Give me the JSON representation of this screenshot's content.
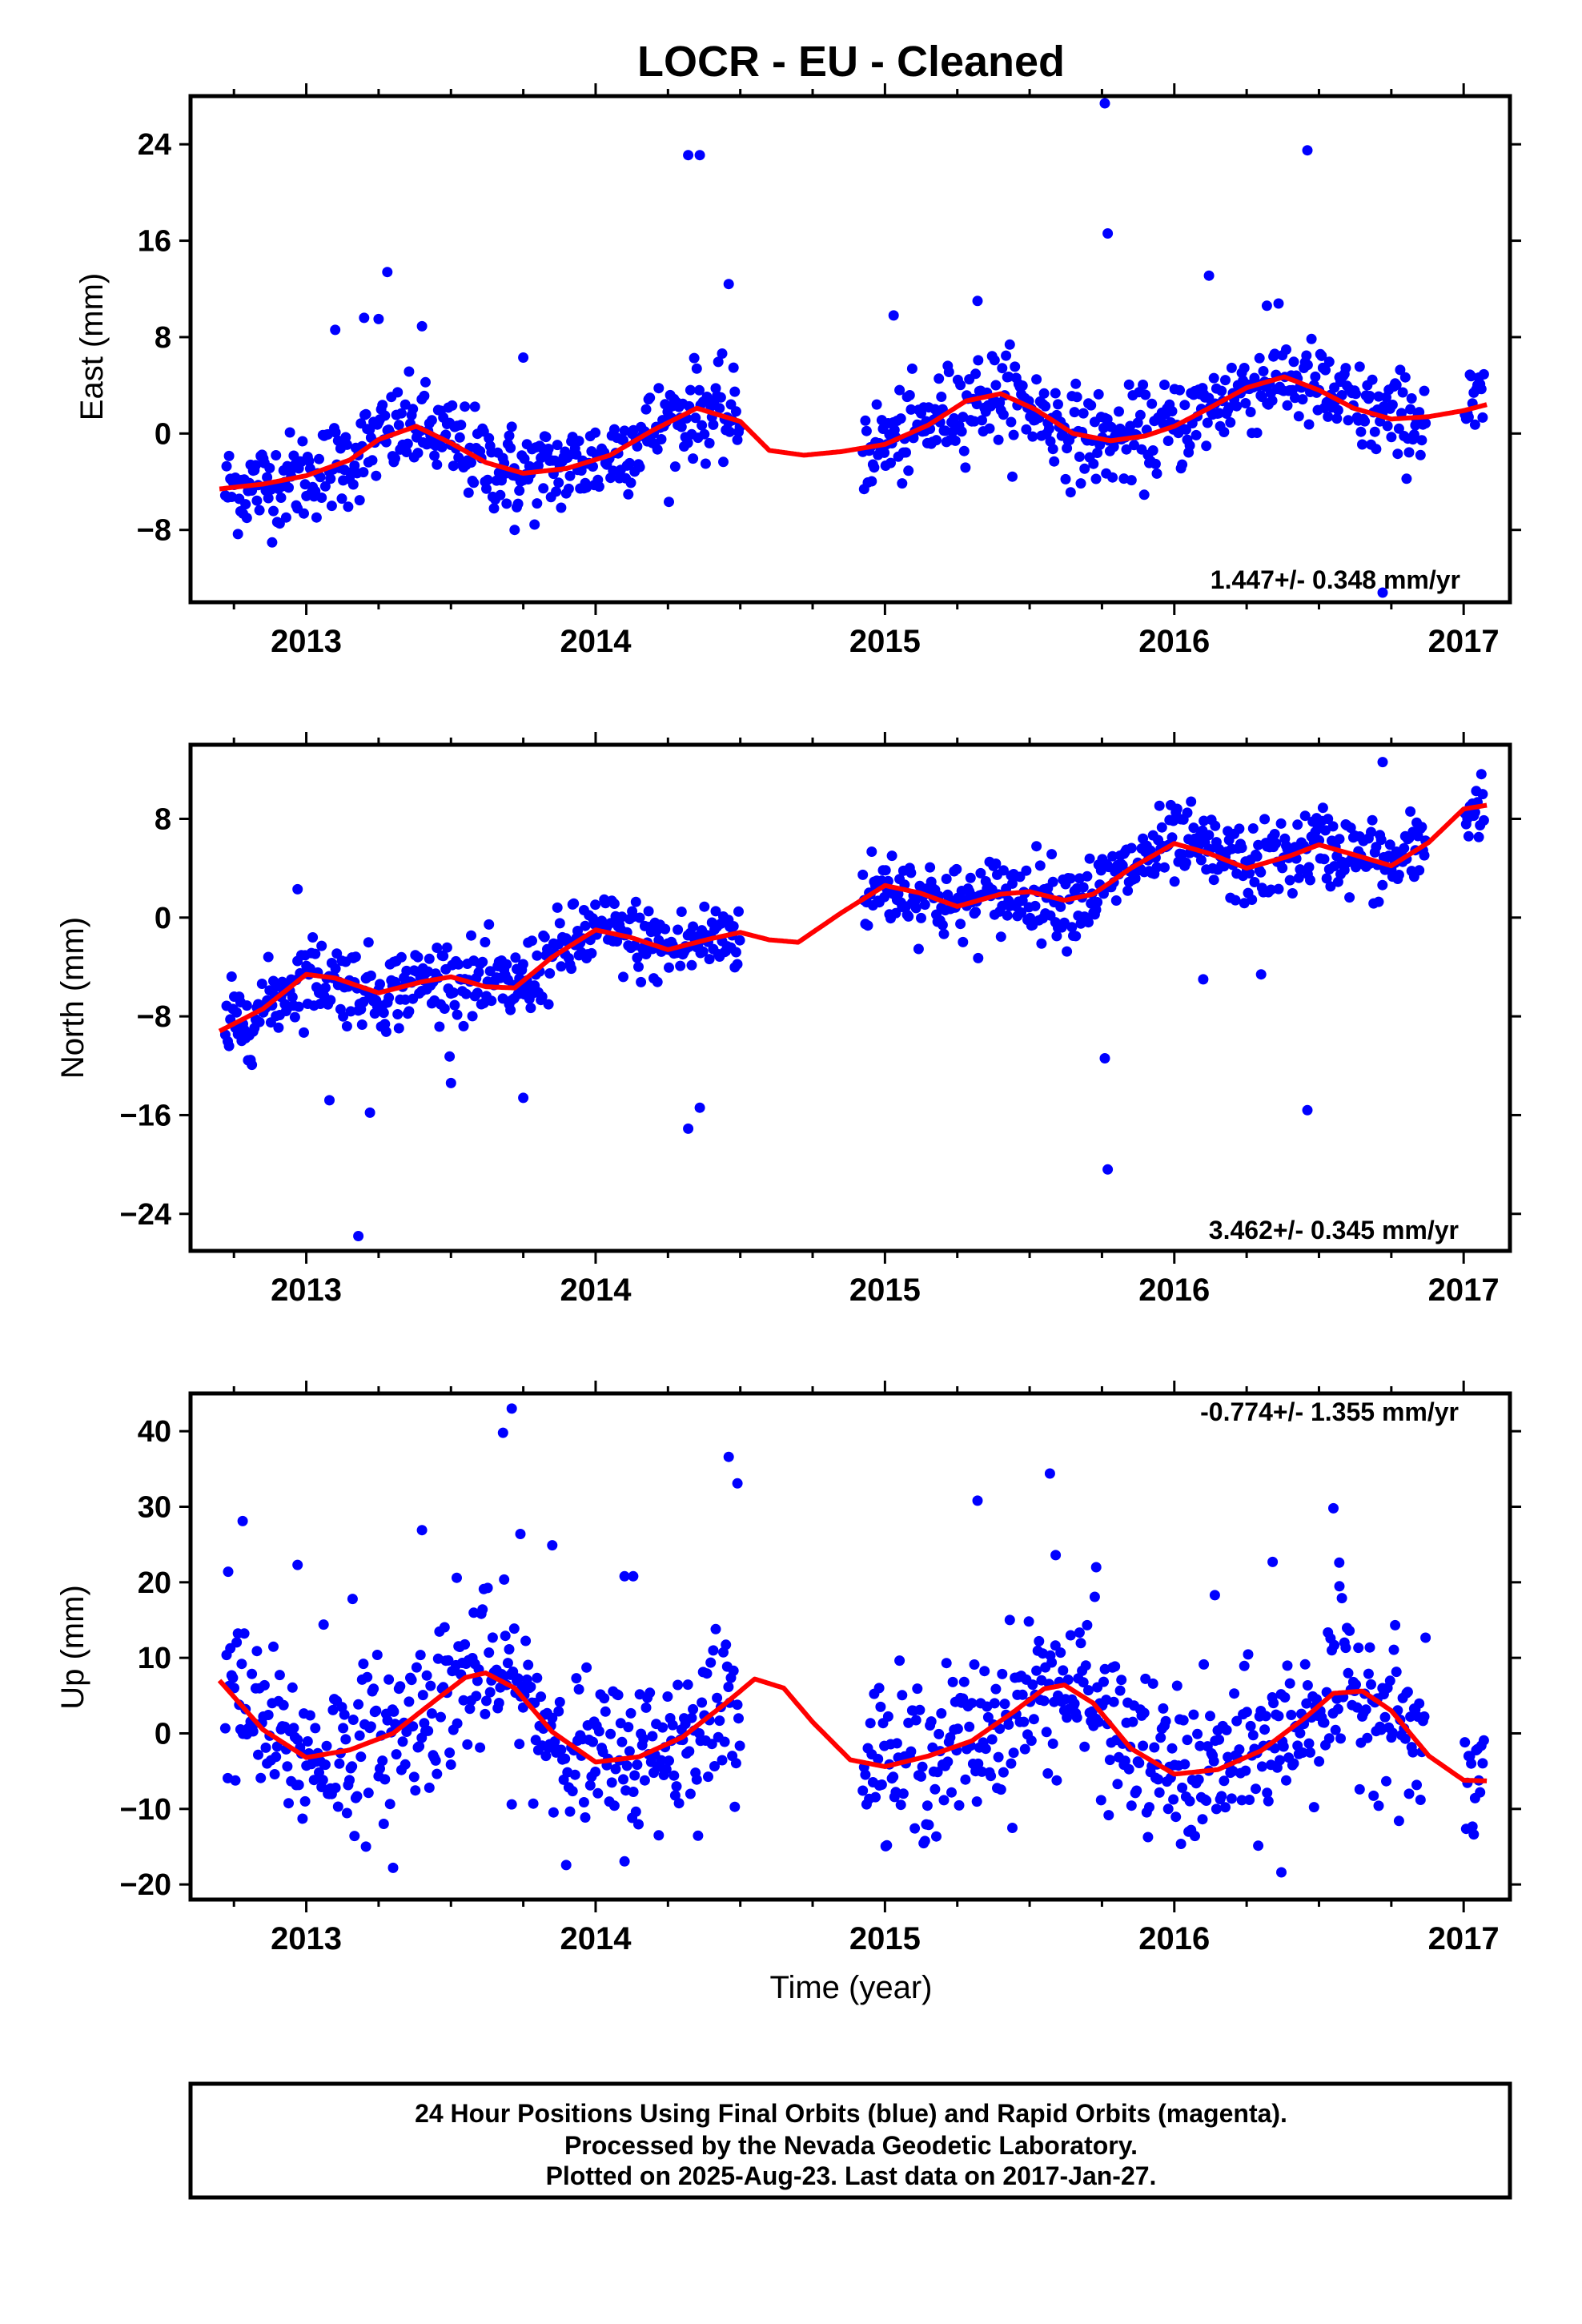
{
  "title": "LOCR  - EU - Cleaned",
  "xlabel": "Time (year)",
  "footer": {
    "lines": [
      "24 Hour Positions Using Final Orbits (blue) and Rapid Orbits (magenta).",
      "Processed by the Nevada Geodetic Laboratory.",
      "Plotted on 2025-Aug-23. Last data on 2017-Jan-27."
    ]
  },
  "colors": {
    "points": "#0000ff",
    "fit": "#ff0000",
    "frame": "#000000"
  },
  "chart_data": [
    {
      "type": "scatter",
      "component": "east",
      "ylabel": "East (mm)",
      "rate_text": "1.447+/- 0.348 mm/yr",
      "rate_position": "bottom-right",
      "xlim": [
        2012.6,
        2017.16
      ],
      "ylim": [
        -14,
        28
      ],
      "xticks": [
        2013,
        2014,
        2015,
        2016,
        2017
      ],
      "yticks": [
        -8,
        0,
        8,
        16,
        24
      ],
      "fit_curve": {
        "x": [
          2012.7,
          2012.85,
          2013.0,
          2013.15,
          2013.25,
          2013.38,
          2013.5,
          2013.62,
          2013.75,
          2013.9,
          2014.05,
          2014.2,
          2014.35,
          2014.5,
          2014.6,
          2014.72,
          2014.85,
          2015.0,
          2015.15,
          2015.28,
          2015.4,
          2015.52,
          2015.65,
          2015.78,
          2015.9,
          2016.0,
          2016.12,
          2016.25,
          2016.38,
          2016.5,
          2016.62,
          2016.75,
          2016.88,
          2017.0,
          2017.08
        ],
        "y": [
          -4.6,
          -4.2,
          -3.5,
          -2.2,
          -0.5,
          0.6,
          -0.8,
          -2.4,
          -3.3,
          -2.9,
          -1.8,
          0.3,
          2.1,
          1.0,
          -1.4,
          -1.8,
          -1.5,
          -0.9,
          0.7,
          2.7,
          3.3,
          2.0,
          0.0,
          -0.6,
          -0.2,
          0.6,
          2.1,
          3.8,
          4.7,
          3.6,
          2.1,
          1.2,
          1.4,
          1.9,
          2.4
        ]
      },
      "outliers": {
        "x": [
          2013.1,
          2013.2,
          2013.25,
          2013.28,
          2013.4,
          2013.75,
          2013.72,
          2014.32,
          2014.36,
          2014.46,
          2015.03,
          2015.32,
          2015.76,
          2015.77,
          2016.12,
          2016.32,
          2016.46,
          2016.72
        ],
        "y": [
          8.6,
          9.6,
          9.5,
          13.4,
          8.9,
          6.3,
          -8.0,
          23.1,
          23.1,
          12.4,
          9.8,
          11.0,
          27.4,
          16.6,
          13.1,
          10.6,
          23.5,
          -13.2
        ]
      }
    },
    {
      "type": "scatter",
      "component": "north",
      "ylabel": "North (mm)",
      "rate_text": "3.462+/- 0.345 mm/yr",
      "rate_position": "bottom-right",
      "xlim": [
        2012.6,
        2017.16
      ],
      "ylim": [
        -27,
        14
      ],
      "xticks": [
        2013,
        2014,
        2015,
        2016,
        2017
      ],
      "yticks": [
        -24,
        -16,
        -8,
        0,
        8
      ],
      "fit_curve": {
        "x": [
          2012.7,
          2012.85,
          2013.0,
          2013.1,
          2013.25,
          2013.4,
          2013.5,
          2013.62,
          2013.72,
          2013.85,
          2014.0,
          2014.12,
          2014.25,
          2014.4,
          2014.5,
          2014.6,
          2014.7,
          2014.85,
          2015.0,
          2015.12,
          2015.25,
          2015.4,
          2015.5,
          2015.62,
          2015.72,
          2015.85,
          2016.0,
          2016.12,
          2016.25,
          2016.4,
          2016.5,
          2016.62,
          2016.75,
          2016.88,
          2017.0,
          2017.08
        ],
        "y": [
          -9.2,
          -7.4,
          -4.6,
          -4.9,
          -6.1,
          -5.2,
          -4.8,
          -5.6,
          -5.7,
          -3.2,
          -1.0,
          -1.6,
          -2.6,
          -1.7,
          -1.2,
          -1.8,
          -2.0,
          0.4,
          2.6,
          2.0,
          0.9,
          1.9,
          2.1,
          1.4,
          1.9,
          4.0,
          6.0,
          5.2,
          4.0,
          5.0,
          5.9,
          5.1,
          4.2,
          6.1,
          8.8,
          9.1
        ]
      },
      "outliers": {
        "x": [
          2012.97,
          2013.08,
          2013.18,
          2013.22,
          2013.5,
          2013.75,
          2014.32,
          2014.36,
          2015.76,
          2015.77,
          2016.1,
          2016.3,
          2016.46,
          2016.72
        ],
        "y": [
          2.3,
          -14.8,
          -25.8,
          -15.8,
          -13.4,
          -14.6,
          -17.1,
          -15.4,
          -11.4,
          -20.4,
          -5.0,
          -4.6,
          -15.6,
          12.6
        ]
      }
    },
    {
      "type": "scatter",
      "component": "up",
      "ylabel": "Up (mm)",
      "rate_text": "-0.774+/- 1.355 mm/yr",
      "rate_position": "top-right",
      "xlim": [
        2012.6,
        2017.16
      ],
      "ylim": [
        -22,
        45
      ],
      "xticks": [
        2013,
        2014,
        2015,
        2016,
        2017
      ],
      "yticks": [
        -20,
        -10,
        0,
        10,
        20,
        30,
        40
      ],
      "fit_curve": {
        "x": [
          2012.7,
          2012.85,
          2013.0,
          2013.15,
          2013.3,
          2013.45,
          2013.55,
          2013.62,
          2013.72,
          2013.85,
          2014.0,
          2014.15,
          2014.3,
          2014.45,
          2014.55,
          2014.65,
          2014.75,
          2014.88,
          2015.0,
          2015.15,
          2015.3,
          2015.45,
          2015.55,
          2015.62,
          2015.72,
          2015.85,
          2016.0,
          2016.15,
          2016.3,
          2016.45,
          2016.55,
          2016.65,
          2016.75,
          2016.88,
          2017.0,
          2017.08
        ],
        "y": [
          7.0,
          0.5,
          -3.2,
          -2.2,
          0.0,
          4.5,
          7.4,
          8.0,
          6.0,
          0.2,
          -3.8,
          -3.1,
          -0.5,
          4.0,
          7.2,
          6.0,
          1.5,
          -3.5,
          -4.4,
          -3.0,
          -1.0,
          3.0,
          5.9,
          6.4,
          4.0,
          -2.0,
          -5.4,
          -4.8,
          -2.3,
          2.0,
          5.3,
          5.6,
          3.0,
          -3.0,
          -6.2,
          -6.3
        ]
      },
      "outliers": {
        "x": [
          2012.73,
          2012.78,
          2012.97,
          2013.06,
          2013.16,
          2013.3,
          2013.4,
          2013.52,
          2013.68,
          2013.71,
          2013.74,
          2013.85,
          2014.1,
          2014.13,
          2014.46,
          2014.49,
          2014.98,
          2015.32,
          2015.57,
          2015.59,
          2015.73,
          2016.14,
          2016.34,
          2016.37,
          2016.55,
          2016.57
        ],
        "y": [
          21.4,
          28.1,
          22.3,
          14.4,
          17.8,
          -17.8,
          26.9,
          20.6,
          39.8,
          43.0,
          26.4,
          24.9,
          20.8,
          20.8,
          36.6,
          33.1,
          6.0,
          30.8,
          34.4,
          23.6,
          22.0,
          18.3,
          22.7,
          -18.4,
          29.8,
          22.6
        ]
      }
    }
  ]
}
